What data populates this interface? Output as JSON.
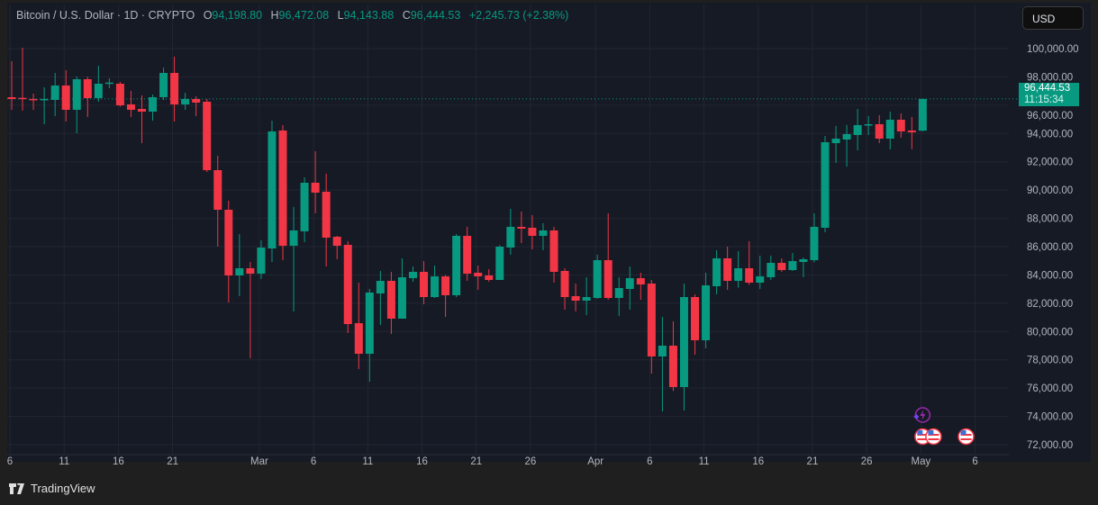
{
  "header": {
    "symbol": "Bitcoin / U.S. Dollar · 1D · CRYPTO",
    "open_label": "O",
    "open": "94,198.80",
    "high_label": "H",
    "high": "96,472.08",
    "low_label": "L",
    "low": "94,143.88",
    "close_label": "C",
    "close": "96,444.53",
    "change": "+2,245.73 (+2.38%)"
  },
  "currency_button": "USD",
  "last_price": {
    "price": "96,444.53",
    "countdown": "11:15:34"
  },
  "brand": "TradingView",
  "colors": {
    "up": "#089981",
    "down": "#f23645",
    "background": "#161a25",
    "grid": "#232632"
  },
  "chart_data": {
    "type": "candlestick",
    "title": "Bitcoin / U.S. Dollar · 1D · CRYPTO",
    "ylim": [
      71500,
      101500
    ],
    "y_ticks": [
      "100,000.00",
      "98,000.00",
      "96,000.00",
      "94,000.00",
      "92,000.00",
      "90,000.00",
      "88,000.00",
      "86,000.00",
      "84,000.00",
      "82,000.00",
      "80,000.00",
      "78,000.00",
      "76,000.00",
      "74,000.00",
      "72,000.00"
    ],
    "y_tick_values": [
      100000,
      98000,
      96000,
      94000,
      92000,
      90000,
      88000,
      86000,
      84000,
      82000,
      80000,
      78000,
      76000,
      74000,
      72000
    ],
    "x_ticks": [
      {
        "label": "6",
        "day": 0
      },
      {
        "label": "11",
        "day": 5
      },
      {
        "label": "16",
        "day": 10
      },
      {
        "label": "21",
        "day": 15
      },
      {
        "label": "Mar",
        "day": 23
      },
      {
        "label": "6",
        "day": 28
      },
      {
        "label": "11",
        "day": 33
      },
      {
        "label": "16",
        "day": 38
      },
      {
        "label": "21",
        "day": 43
      },
      {
        "label": "26",
        "day": 48
      },
      {
        "label": "Apr",
        "day": 54
      },
      {
        "label": "6",
        "day": 59
      },
      {
        "label": "11",
        "day": 64
      },
      {
        "label": "16",
        "day": 69
      },
      {
        "label": "21",
        "day": 74
      },
      {
        "label": "26",
        "day": 79
      },
      {
        "label": "May",
        "day": 84
      },
      {
        "label": "6",
        "day": 89
      }
    ],
    "grid": true,
    "current_price": 96444.53,
    "candles_ohlc_from_feb6": [
      [
        96564,
        99109,
        95673,
        96436
      ],
      [
        96520,
        100064,
        95609,
        96450
      ],
      [
        96440,
        96818,
        95673,
        96380
      ],
      [
        96380,
        97264,
        94654,
        96440
      ],
      [
        96373,
        98282,
        95227,
        97391
      ],
      [
        97391,
        98473,
        94845,
        95673
      ],
      [
        95673,
        98027,
        94018,
        97836
      ],
      [
        97836,
        98027,
        95164,
        96500
      ],
      [
        96500,
        98791,
        96245,
        97518
      ],
      [
        97518,
        97900,
        97200,
        97600
      ],
      [
        97518,
        97645,
        95900,
        95991
      ],
      [
        96055,
        97009,
        95164,
        95673
      ],
      [
        95736,
        96691,
        93318,
        95545
      ],
      [
        95545,
        96755,
        94909,
        96564
      ],
      [
        96564,
        98664,
        96373,
        98282
      ],
      [
        98282,
        99427,
        94845,
        96055
      ],
      [
        96055,
        96882,
        95673,
        96436
      ],
      [
        96436,
        96627,
        95227,
        96182
      ],
      [
        96245,
        96436,
        91282,
        91409
      ],
      [
        91409,
        92427,
        86000,
        88609
      ],
      [
        88609,
        89245,
        82055,
        83964
      ],
      [
        83964,
        86891,
        82500,
        84473
      ],
      [
        84473,
        84918,
        78109,
        84091
      ],
      [
        84091,
        86445,
        83709,
        85936
      ],
      [
        85873,
        94909,
        84918,
        94145
      ],
      [
        94209,
        94591,
        85045,
        86064
      ],
      [
        86064,
        88800,
        81418,
        87145
      ],
      [
        87082,
        90900,
        86318,
        90518
      ],
      [
        90518,
        92745,
        88355,
        89818
      ],
      [
        89882,
        91154,
        84600,
        86636
      ],
      [
        86700,
        86764,
        85109,
        86064
      ],
      [
        86127,
        86382,
        79891,
        80527
      ],
      [
        80591,
        83454,
        77345,
        78427
      ],
      [
        78427,
        83009,
        76454,
        82754
      ],
      [
        82691,
        84282,
        80464,
        83582
      ],
      [
        83582,
        84218,
        79827,
        80909
      ],
      [
        80909,
        85173,
        81036,
        83836
      ],
      [
        83773,
        84600,
        83518,
        84218
      ],
      [
        84218,
        84982,
        81927,
        82436
      ],
      [
        82436,
        84664,
        82373,
        83900
      ],
      [
        83900,
        84000,
        81036,
        82564
      ],
      [
        82564,
        86891,
        82436,
        86764
      ],
      [
        86764,
        87400,
        83582,
        84091
      ],
      [
        84155,
        84664,
        82945,
        83900
      ],
      [
        83964,
        84409,
        83518,
        83645
      ],
      [
        83645,
        86100,
        83645,
        86000
      ],
      [
        85936,
        88670,
        85427,
        87400
      ],
      [
        87400,
        88480,
        86254,
        87273
      ],
      [
        87336,
        88227,
        85809,
        86764
      ],
      [
        86764,
        87654,
        85745,
        87145
      ],
      [
        87145,
        87400,
        83454,
        84218
      ],
      [
        84282,
        84473,
        81545,
        82436
      ],
      [
        82500,
        83391,
        81418,
        82182
      ],
      [
        82182,
        83836,
        81164,
        82436
      ],
      [
        82373,
        85427,
        82309,
        85045
      ],
      [
        85045,
        88355,
        82245,
        82373
      ],
      [
        82373,
        83836,
        81100,
        83073
      ],
      [
        83009,
        84600,
        81545,
        83773
      ],
      [
        83773,
        84155,
        82245,
        83327
      ],
      [
        83391,
        83645,
        77027,
        78236
      ],
      [
        78236,
        81036,
        74355,
        79000
      ],
      [
        79000,
        80718,
        75800,
        76073
      ],
      [
        76073,
        83391,
        74418,
        82436
      ],
      [
        82436,
        82627,
        78364,
        79382
      ],
      [
        79382,
        84155,
        78809,
        83264
      ],
      [
        83200,
        85745,
        82627,
        85173
      ],
      [
        85173,
        86000,
        82945,
        83582
      ],
      [
        83582,
        85682,
        83100,
        84473
      ],
      [
        84473,
        86382,
        83300,
        83454
      ],
      [
        83454,
        85364,
        83009,
        83900
      ],
      [
        83836,
        85364,
        83645,
        84854
      ],
      [
        84854,
        85173,
        84218,
        84345
      ],
      [
        84345,
        85554,
        84282,
        84982
      ],
      [
        84918,
        85236,
        83836,
        85109
      ],
      [
        85045,
        88355,
        84900,
        87400
      ],
      [
        87336,
        93827,
        87018,
        93382
      ],
      [
        93318,
        94527,
        91918,
        93636
      ],
      [
        93573,
        94600,
        91664,
        93955
      ],
      [
        93891,
        95736,
        92809,
        94591
      ],
      [
        94620,
        95227,
        93891,
        94654
      ],
      [
        94654,
        95291,
        93318,
        93636
      ],
      [
        93636,
        95545,
        92873,
        94973
      ],
      [
        94973,
        95418,
        93700,
        94145
      ],
      [
        94209,
        95164,
        92900,
        94082
      ],
      [
        94198.8,
        96472.08,
        94143.88,
        96444.53
      ]
    ],
    "events": [
      {
        "type": "lightning",
        "day": 84
      },
      {
        "type": "us-flag",
        "day": 84
      },
      {
        "type": "us-flag",
        "day": 85
      },
      {
        "type": "us-flag",
        "day": 88
      }
    ]
  }
}
